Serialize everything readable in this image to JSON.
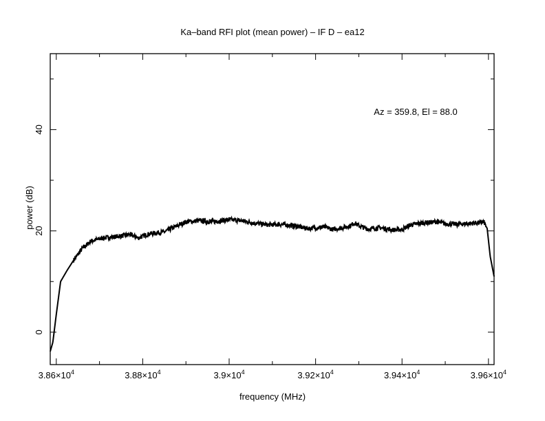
{
  "chart_data": {
    "type": "line",
    "title": "Ka–band RFI plot (mean power) – IF D – ea12",
    "xlabel": "frequency (MHz)",
    "ylabel": "power (dB)",
    "annotation": "Az = 359.8, El = 88.0",
    "xlim": [
      38586,
      39613
    ],
    "ylim": [
      -6.4,
      55
    ],
    "xticks": [
      38600,
      38800,
      39000,
      39200,
      39400,
      39600
    ],
    "xtick_labels": [
      {
        "mant": "3.86×10",
        "exp": "4"
      },
      {
        "mant": "3.88×10",
        "exp": "4"
      },
      {
        "mant": "3.9×10",
        "exp": "4"
      },
      {
        "mant": "3.92×10",
        "exp": "4"
      },
      {
        "mant": "3.94×10",
        "exp": "4"
      },
      {
        "mant": "3.96×10",
        "exp": "4"
      }
    ],
    "yticks": [
      0,
      20,
      40
    ],
    "ytick_labels": [
      "0",
      "20",
      "40"
    ],
    "grid": false,
    "series": [
      {
        "name": "mean power",
        "x": [
          38586,
          38592,
          38600,
          38610,
          38625,
          38640,
          38660,
          38680,
          38710,
          38750,
          38770,
          38790,
          38810,
          38830,
          38850,
          38870,
          38900,
          38930,
          38960,
          39000,
          39030,
          39060,
          39090,
          39120,
          39150,
          39180,
          39200,
          39220,
          39240,
          39260,
          39280,
          39290,
          39300,
          39320,
          39350,
          39380,
          39400,
          39420,
          39450,
          39480,
          39500,
          39530,
          39560,
          39590,
          39597,
          39604,
          39613
        ],
        "y": [
          -3.8,
          -2.0,
          3.5,
          10.0,
          12.2,
          14.2,
          16.5,
          18.0,
          18.6,
          19.0,
          19.3,
          18.6,
          19.3,
          19.6,
          19.8,
          20.6,
          21.8,
          22.0,
          21.8,
          22.2,
          22.0,
          21.5,
          21.2,
          21.3,
          21.0,
          20.5,
          20.6,
          20.8,
          20.3,
          20.6,
          21.0,
          21.6,
          21.0,
          20.4,
          20.6,
          20.2,
          20.3,
          21.2,
          21.6,
          21.8,
          21.4,
          21.3,
          21.5,
          21.7,
          20.5,
          15.0,
          11.0
        ]
      }
    ]
  }
}
